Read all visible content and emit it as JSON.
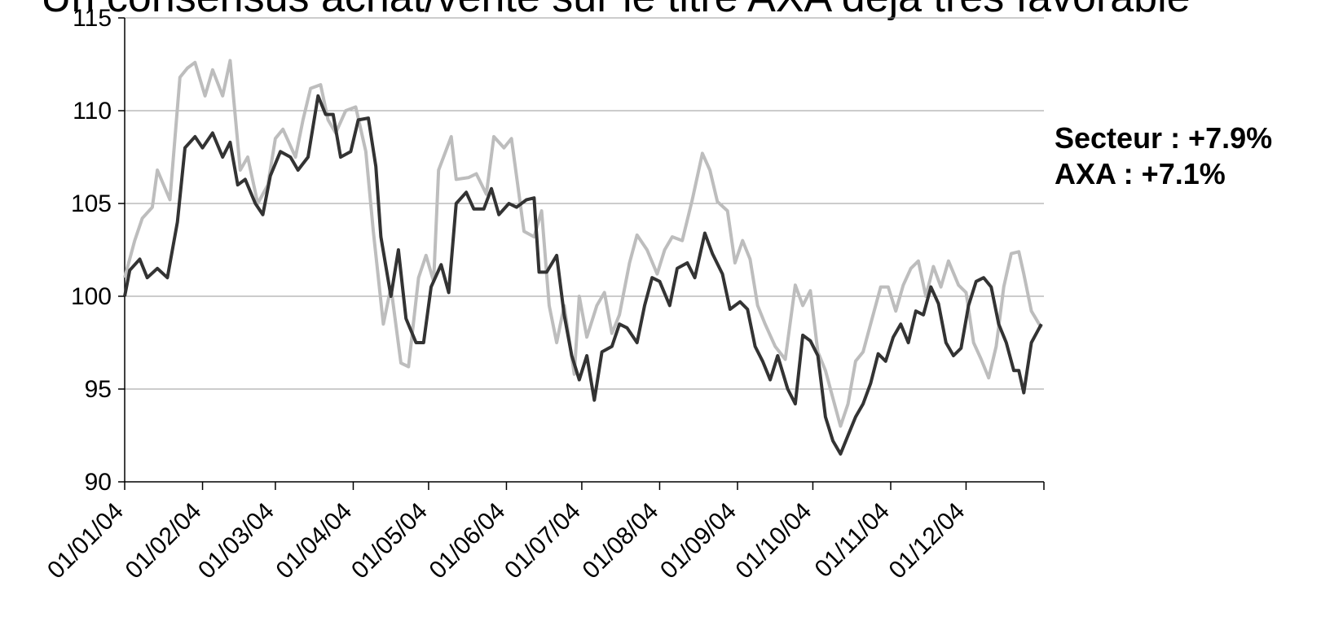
{
  "chart_data": {
    "type": "line",
    "title": "Un consensus achat/vente sur le titre AXA déjà très favorable",
    "ylim": [
      90,
      115
    ],
    "y_ticks": [
      "90",
      "95",
      "100",
      "105",
      "110",
      "115"
    ],
    "x_ticks": [
      "01/01/04",
      "01/02/04",
      "01/03/04",
      "01/04/04",
      "01/05/04",
      "01/06/04",
      "01/07/04",
      "01/08/04",
      "01/09/04",
      "01/10/04",
      "01/11/04",
      "01/12/04"
    ],
    "grid": true,
    "series": [
      {
        "color": "#bdbdbd",
        "points": [
          [
            "2004-01-01",
            101.0
          ],
          [
            "2004-01-05",
            103.0
          ],
          [
            "2004-01-08",
            104.2
          ],
          [
            "2004-01-12",
            104.8
          ],
          [
            "2004-01-14",
            106.8
          ],
          [
            "2004-01-19",
            105.2
          ],
          [
            "2004-01-23",
            111.8
          ],
          [
            "2004-01-26",
            112.3
          ],
          [
            "2004-01-29",
            112.6
          ],
          [
            "2004-02-02",
            110.8
          ],
          [
            "2004-02-05",
            112.2
          ],
          [
            "2004-02-09",
            110.8
          ],
          [
            "2004-02-12",
            112.7
          ],
          [
            "2004-02-16",
            106.8
          ],
          [
            "2004-02-19",
            107.5
          ],
          [
            "2004-02-23",
            105.0
          ],
          [
            "2004-02-27",
            106.0
          ],
          [
            "2004-03-01",
            108.5
          ],
          [
            "2004-03-04",
            109.0
          ],
          [
            "2004-03-09",
            107.5
          ],
          [
            "2004-03-12",
            109.5
          ],
          [
            "2004-03-15",
            111.2
          ],
          [
            "2004-03-19",
            111.4
          ],
          [
            "2004-03-22",
            109.5
          ],
          [
            "2004-03-25",
            108.8
          ],
          [
            "2004-03-29",
            110.0
          ],
          [
            "2004-04-02",
            110.2
          ],
          [
            "2004-04-06",
            107.8
          ],
          [
            "2004-04-09",
            103.5
          ],
          [
            "2004-04-13",
            98.5
          ],
          [
            "2004-04-16",
            100.5
          ],
          [
            "2004-04-20",
            96.4
          ],
          [
            "2004-04-23",
            96.2
          ],
          [
            "2004-04-27",
            101.0
          ],
          [
            "2004-04-30",
            102.2
          ],
          [
            "2004-05-03",
            100.8
          ],
          [
            "2004-05-05",
            106.8
          ],
          [
            "2004-05-10",
            108.6
          ],
          [
            "2004-05-12",
            106.3
          ],
          [
            "2004-05-17",
            106.4
          ],
          [
            "2004-05-20",
            106.6
          ],
          [
            "2004-05-24",
            105.5
          ],
          [
            "2004-05-27",
            108.6
          ],
          [
            "2004-05-31",
            108.0
          ],
          [
            "2004-06-03",
            108.5
          ],
          [
            "2004-06-08",
            103.5
          ],
          [
            "2004-06-12",
            103.2
          ],
          [
            "2004-06-15",
            104.6
          ],
          [
            "2004-06-18",
            99.5
          ],
          [
            "2004-06-21",
            97.5
          ],
          [
            "2004-06-24",
            99.5
          ],
          [
            "2004-06-28",
            95.8
          ],
          [
            "2004-06-30",
            100.0
          ],
          [
            "2004-07-03",
            97.8
          ],
          [
            "2004-07-07",
            99.5
          ],
          [
            "2004-07-10",
            100.2
          ],
          [
            "2004-07-13",
            98.0
          ],
          [
            "2004-07-16",
            99.0
          ],
          [
            "2004-07-20",
            101.8
          ],
          [
            "2004-07-23",
            103.3
          ],
          [
            "2004-07-27",
            102.5
          ],
          [
            "2004-07-31",
            101.2
          ],
          [
            "2004-08-03",
            102.5
          ],
          [
            "2004-08-06",
            103.2
          ],
          [
            "2004-08-10",
            103.0
          ],
          [
            "2004-08-14",
            105.2
          ],
          [
            "2004-08-18",
            107.7
          ],
          [
            "2004-08-21",
            106.8
          ],
          [
            "2004-08-24",
            105.1
          ],
          [
            "2004-08-28",
            104.6
          ],
          [
            "2004-08-31",
            101.8
          ],
          [
            "2004-09-03",
            103.0
          ],
          [
            "2004-09-06",
            102.0
          ],
          [
            "2004-09-09",
            99.5
          ],
          [
            "2004-09-12",
            98.5
          ],
          [
            "2004-09-16",
            97.3
          ],
          [
            "2004-09-20",
            96.6
          ],
          [
            "2004-09-24",
            100.6
          ],
          [
            "2004-09-27",
            99.5
          ],
          [
            "2004-09-30",
            100.3
          ],
          [
            "2004-10-03",
            97.0
          ],
          [
            "2004-10-06",
            96.0
          ],
          [
            "2004-10-09",
            94.5
          ],
          [
            "2004-10-12",
            93.0
          ],
          [
            "2004-10-15",
            94.2
          ],
          [
            "2004-10-18",
            96.5
          ],
          [
            "2004-10-21",
            97.0
          ],
          [
            "2004-10-24",
            98.5
          ],
          [
            "2004-10-28",
            100.5
          ],
          [
            "2004-10-31",
            100.5
          ],
          [
            "2004-11-03",
            99.2
          ],
          [
            "2004-11-06",
            100.6
          ],
          [
            "2004-11-09",
            101.5
          ],
          [
            "2004-11-12",
            101.9
          ],
          [
            "2004-11-15",
            100.0
          ],
          [
            "2004-11-18",
            101.6
          ],
          [
            "2004-11-21",
            100.5
          ],
          [
            "2004-11-24",
            101.9
          ],
          [
            "2004-11-28",
            100.6
          ],
          [
            "2004-12-01",
            100.2
          ],
          [
            "2004-12-04",
            97.5
          ],
          [
            "2004-12-07",
            96.6
          ],
          [
            "2004-12-10",
            95.6
          ],
          [
            "2004-12-13",
            97.3
          ],
          [
            "2004-12-16",
            100.5
          ],
          [
            "2004-12-19",
            102.3
          ],
          [
            "2004-12-22",
            102.4
          ],
          [
            "2004-12-24",
            101.2
          ],
          [
            "2004-12-27",
            99.2
          ],
          [
            "2004-12-31",
            98.3
          ]
        ]
      },
      {
        "color": "#333333",
        "points": [
          [
            "2004-01-01",
            100.0
          ],
          [
            "2004-01-03",
            101.4
          ],
          [
            "2004-01-07",
            102.0
          ],
          [
            "2004-01-10",
            101.0
          ],
          [
            "2004-01-14",
            101.5
          ],
          [
            "2004-01-18",
            101.0
          ],
          [
            "2004-01-22",
            104.0
          ],
          [
            "2004-01-25",
            108.0
          ],
          [
            "2004-01-29",
            108.6
          ],
          [
            "2004-02-01",
            108.0
          ],
          [
            "2004-02-05",
            108.8
          ],
          [
            "2004-02-09",
            107.5
          ],
          [
            "2004-02-12",
            108.3
          ],
          [
            "2004-02-15",
            106.0
          ],
          [
            "2004-02-18",
            106.3
          ],
          [
            "2004-02-22",
            105.0
          ],
          [
            "2004-02-25",
            104.4
          ],
          [
            "2004-02-28",
            106.5
          ],
          [
            "2004-03-03",
            107.8
          ],
          [
            "2004-03-07",
            107.5
          ],
          [
            "2004-03-10",
            106.8
          ],
          [
            "2004-03-14",
            107.5
          ],
          [
            "2004-03-18",
            110.8
          ],
          [
            "2004-03-21",
            109.8
          ],
          [
            "2004-03-24",
            109.8
          ],
          [
            "2004-03-27",
            107.5
          ],
          [
            "2004-03-31",
            107.8
          ],
          [
            "2004-04-03",
            109.5
          ],
          [
            "2004-04-07",
            109.6
          ],
          [
            "2004-04-10",
            107.0
          ],
          [
            "2004-04-12",
            103.2
          ],
          [
            "2004-04-16",
            100.0
          ],
          [
            "2004-04-19",
            102.5
          ],
          [
            "2004-04-22",
            98.8
          ],
          [
            "2004-04-26",
            97.5
          ],
          [
            "2004-04-29",
            97.5
          ],
          [
            "2004-05-02",
            100.5
          ],
          [
            "2004-05-06",
            101.7
          ],
          [
            "2004-05-09",
            100.2
          ],
          [
            "2004-05-12",
            105.0
          ],
          [
            "2004-05-16",
            105.6
          ],
          [
            "2004-05-19",
            104.7
          ],
          [
            "2004-05-23",
            104.7
          ],
          [
            "2004-05-26",
            105.8
          ],
          [
            "2004-05-29",
            104.4
          ],
          [
            "2004-06-02",
            105.0
          ],
          [
            "2004-06-05",
            104.8
          ],
          [
            "2004-06-09",
            105.2
          ],
          [
            "2004-06-12",
            105.3
          ],
          [
            "2004-06-14",
            101.3
          ],
          [
            "2004-06-17",
            101.3
          ],
          [
            "2004-06-21",
            102.2
          ],
          [
            "2004-06-24",
            99.0
          ],
          [
            "2004-06-27",
            96.8
          ],
          [
            "2004-06-30",
            95.5
          ],
          [
            "2004-07-03",
            96.8
          ],
          [
            "2004-07-06",
            94.4
          ],
          [
            "2004-07-09",
            97.0
          ],
          [
            "2004-07-13",
            97.3
          ],
          [
            "2004-07-16",
            98.5
          ],
          [
            "2004-07-19",
            98.3
          ],
          [
            "2004-07-23",
            97.5
          ],
          [
            "2004-07-26",
            99.5
          ],
          [
            "2004-07-29",
            101.0
          ],
          [
            "2004-08-01",
            100.8
          ],
          [
            "2004-08-05",
            99.5
          ],
          [
            "2004-08-08",
            101.5
          ],
          [
            "2004-08-12",
            101.8
          ],
          [
            "2004-08-15",
            101.0
          ],
          [
            "2004-08-19",
            103.4
          ],
          [
            "2004-08-22",
            102.3
          ],
          [
            "2004-08-26",
            101.2
          ],
          [
            "2004-08-29",
            99.3
          ],
          [
            "2004-09-02",
            99.7
          ],
          [
            "2004-09-05",
            99.3
          ],
          [
            "2004-09-08",
            97.3
          ],
          [
            "2004-09-11",
            96.5
          ],
          [
            "2004-09-14",
            95.5
          ],
          [
            "2004-09-17",
            96.8
          ],
          [
            "2004-09-21",
            95.0
          ],
          [
            "2004-09-24",
            94.2
          ],
          [
            "2004-09-27",
            97.9
          ],
          [
            "2004-09-30",
            97.6
          ],
          [
            "2004-10-03",
            96.8
          ],
          [
            "2004-10-06",
            93.5
          ],
          [
            "2004-10-09",
            92.2
          ],
          [
            "2004-10-12",
            91.5
          ],
          [
            "2004-10-15",
            92.5
          ],
          [
            "2004-10-18",
            93.5
          ],
          [
            "2004-10-21",
            94.2
          ],
          [
            "2004-10-24",
            95.3
          ],
          [
            "2004-10-27",
            96.9
          ],
          [
            "2004-10-30",
            96.5
          ],
          [
            "2004-11-02",
            97.8
          ],
          [
            "2004-11-05",
            98.5
          ],
          [
            "2004-11-08",
            97.5
          ],
          [
            "2004-11-11",
            99.2
          ],
          [
            "2004-11-14",
            99.0
          ],
          [
            "2004-11-17",
            100.5
          ],
          [
            "2004-11-20",
            99.6
          ],
          [
            "2004-11-23",
            97.5
          ],
          [
            "2004-11-26",
            96.8
          ],
          [
            "2004-11-29",
            97.2
          ],
          [
            "2004-12-02",
            99.5
          ],
          [
            "2004-12-05",
            100.8
          ],
          [
            "2004-12-08",
            101.0
          ],
          [
            "2004-12-11",
            100.5
          ],
          [
            "2004-12-14",
            98.5
          ],
          [
            "2004-12-17",
            97.5
          ],
          [
            "2004-12-20",
            96.0
          ],
          [
            "2004-12-22",
            96.0
          ],
          [
            "2004-12-24",
            94.8
          ],
          [
            "2004-12-27",
            97.5
          ],
          [
            "2004-12-31",
            98.5
          ]
        ]
      }
    ],
    "annotations": [
      {
        "text": "Secteur : +7.9%"
      },
      {
        "text": "AXA : +7.1%"
      }
    ]
  }
}
